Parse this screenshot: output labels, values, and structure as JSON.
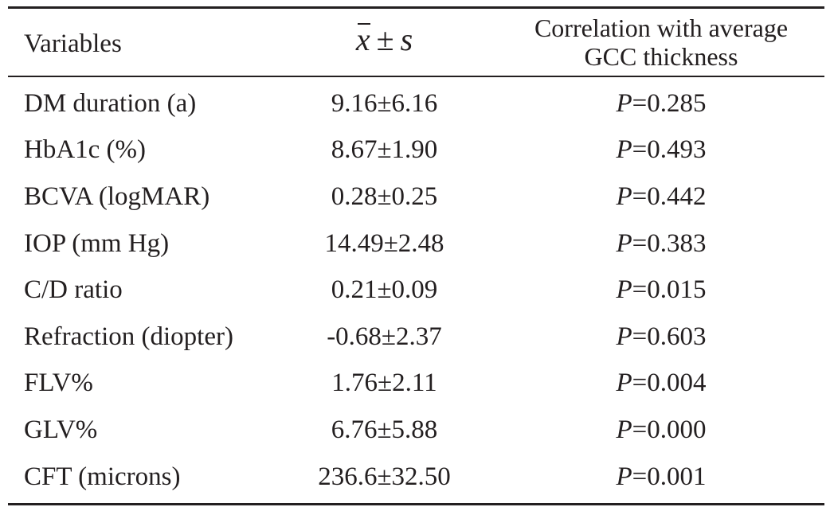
{
  "table": {
    "headers": {
      "variables": "Variables",
      "mean_sd": {
        "x": "x",
        "pm": "±",
        "s": "s"
      },
      "correlation_line1": "Correlation with average",
      "correlation_line2": "GCC thickness"
    },
    "rows": [
      {
        "variable": "DM duration (a)",
        "mean_sd": "9.16±6.16",
        "p_label": "P",
        "p_value": "=0.285"
      },
      {
        "variable": "HbA1c (%)",
        "mean_sd": "8.67±1.90",
        "p_label": "P",
        "p_value": "=0.493"
      },
      {
        "variable": "BCVA (logMAR)",
        "mean_sd": "0.28±0.25",
        "p_label": "P",
        "p_value": "=0.442"
      },
      {
        "variable": "IOP (mm Hg)",
        "mean_sd": "14.49±2.48",
        "p_label": "P",
        "p_value": "=0.383"
      },
      {
        "variable": "C/D ratio",
        "mean_sd": "0.21±0.09",
        "p_label": "P",
        "p_value": "=0.015"
      },
      {
        "variable": "Refraction (diopter)",
        "mean_sd": "-0.68±2.37",
        "p_label": "P",
        "p_value": "=0.603"
      },
      {
        "variable": "FLV%",
        "mean_sd": "1.76±2.11",
        "p_label": "P",
        "p_value": "=0.004"
      },
      {
        "variable": "GLV%",
        "mean_sd": "6.76±5.88",
        "p_label": "P",
        "p_value": "=0.000"
      },
      {
        "variable": "CFT (microns)",
        "mean_sd": "236.6±32.50",
        "p_label": "P",
        "p_value": "=0.001"
      }
    ]
  }
}
